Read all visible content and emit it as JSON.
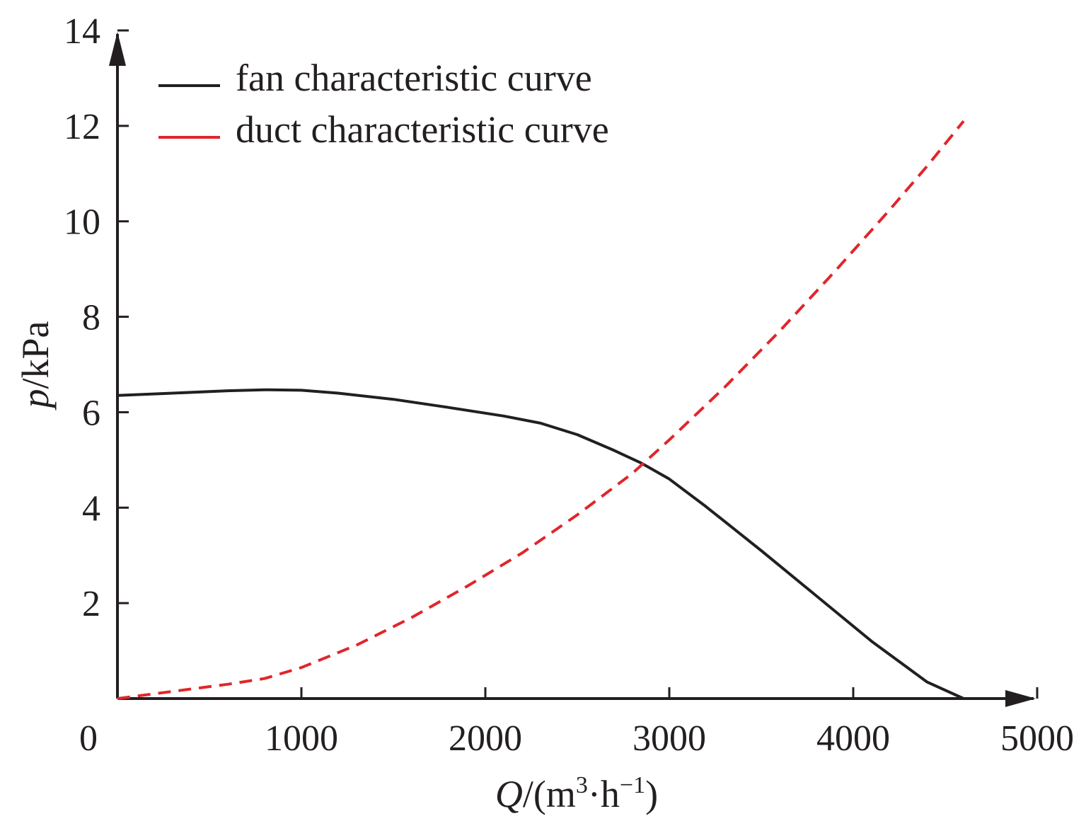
{
  "chart_data": {
    "type": "line",
    "xlabel": {
      "var": "Q",
      "unit_open": "/(m",
      "sup1": "3",
      "mid": "·h",
      "sup2": "−1",
      "unit_close": ")"
    },
    "ylabel": {
      "var": "p",
      "unit": "/kPa"
    },
    "xlim": [
      0,
      5000
    ],
    "ylim": [
      0,
      14
    ],
    "xticks": [
      "0",
      "1000",
      "2000",
      "3000",
      "4000",
      "5000"
    ],
    "yticks": [
      "2",
      "4",
      "6",
      "8",
      "10",
      "12",
      "14"
    ],
    "xtick_values": [
      0,
      1000,
      2000,
      3000,
      4000,
      5000
    ],
    "ytick_values": [
      2,
      4,
      6,
      8,
      10,
      12,
      14
    ],
    "grid": false,
    "legend": "top-left",
    "series": [
      {
        "name": "fan characteristic curve",
        "color": "#231f20",
        "style": "solid",
        "x": [
          0,
          300,
          600,
          800,
          1000,
          1200,
          1500,
          1800,
          2100,
          2300,
          2500,
          2700,
          2850,
          3000,
          3200,
          3500,
          3800,
          4100,
          4400,
          4600
        ],
        "y": [
          6.35,
          6.4,
          6.45,
          6.47,
          6.46,
          6.4,
          6.27,
          6.1,
          5.92,
          5.77,
          5.53,
          5.2,
          4.93,
          4.6,
          4.02,
          3.1,
          2.15,
          1.2,
          0.35,
          0.0
        ]
      },
      {
        "name": "duct characteristic curve",
        "color": "#e0262b",
        "style": "dashed",
        "x": [
          0,
          300,
          600,
          800,
          1000,
          1300,
          1600,
          1900,
          2200,
          2500,
          2800,
          3000,
          3300,
          3600,
          3900,
          4200,
          4400,
          4600
        ],
        "y": [
          0.0,
          0.15,
          0.3,
          0.42,
          0.65,
          1.12,
          1.7,
          2.35,
          3.05,
          3.85,
          4.72,
          5.42,
          6.52,
          7.7,
          8.95,
          10.25,
          11.15,
          12.1
        ]
      }
    ]
  }
}
